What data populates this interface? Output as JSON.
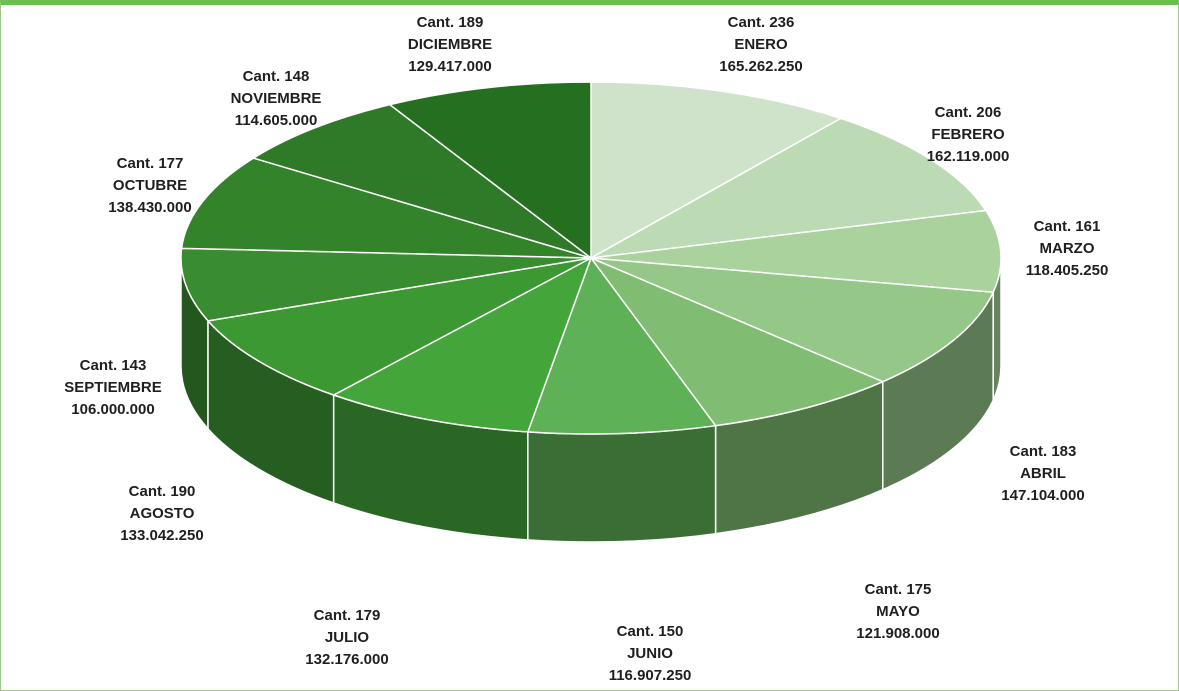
{
  "chart_data": {
    "type": "pie",
    "style": "3d",
    "start": "top, clockwise",
    "categories": [
      "ENERO",
      "FEBRERO",
      "MARZO",
      "ABRIL",
      "MAYO",
      "JUNIO",
      "JULIO",
      "AGOSTO",
      "SEPTIEMBRE",
      "OCTUBRE",
      "NOVIEMBRE",
      "DICIEMBRE"
    ],
    "slices": [
      {
        "label": "ENERO",
        "count": "Cant. 236",
        "amount": "165.262.250",
        "value": 165262250,
        "color": "#cfe3cb"
      },
      {
        "label": "FEBRERO",
        "count": "Cant. 206",
        "amount": "162.119.000",
        "value": 162119000,
        "color": "#bcdab4"
      },
      {
        "label": "MARZO",
        "count": "Cant. 161",
        "amount": "118.405.250",
        "value": 118405250,
        "color": "#a9d29d"
      },
      {
        "label": "ABRIL",
        "count": "Cant. 183",
        "amount": "147.104.000",
        "value": 147104000,
        "color": "#95c788"
      },
      {
        "label": "MAYO",
        "count": "Cant. 175",
        "amount": "121.908.000",
        "value": 121908000,
        "color": "#80bd72"
      },
      {
        "label": "JUNIO",
        "count": "Cant. 150",
        "amount": "116.907.250",
        "value": 116907250,
        "color": "#5eb156"
      },
      {
        "label": "JULIO",
        "count": "Cant. 179",
        "amount": "132.176.000",
        "value": 132176000,
        "color": "#44a63a"
      },
      {
        "label": "AGOSTO",
        "count": "Cant. 190",
        "amount": "133.042.250",
        "value": 133042250,
        "color": "#3c9833"
      },
      {
        "label": "SEPTIEMBRE",
        "count": "Cant. 143",
        "amount": "106.000.000",
        "value": 106000000,
        "color": "#3a8c30"
      },
      {
        "label": "OCTUBRE",
        "count": "Cant. 177",
        "amount": "138.430.000",
        "value": 138430000,
        "color": "#33832b"
      },
      {
        "label": "NOVIEMBRE",
        "count": "Cant. 148",
        "amount": "114.605.000",
        "value": 114605000,
        "color": "#2e7a28"
      },
      {
        "label": "DICIEMBRE",
        "count": "Cant. 189",
        "amount": "129.417.000",
        "value": 129417000,
        "color": "#256f20"
      }
    ],
    "legend": "none",
    "data_labels": "outside"
  }
}
